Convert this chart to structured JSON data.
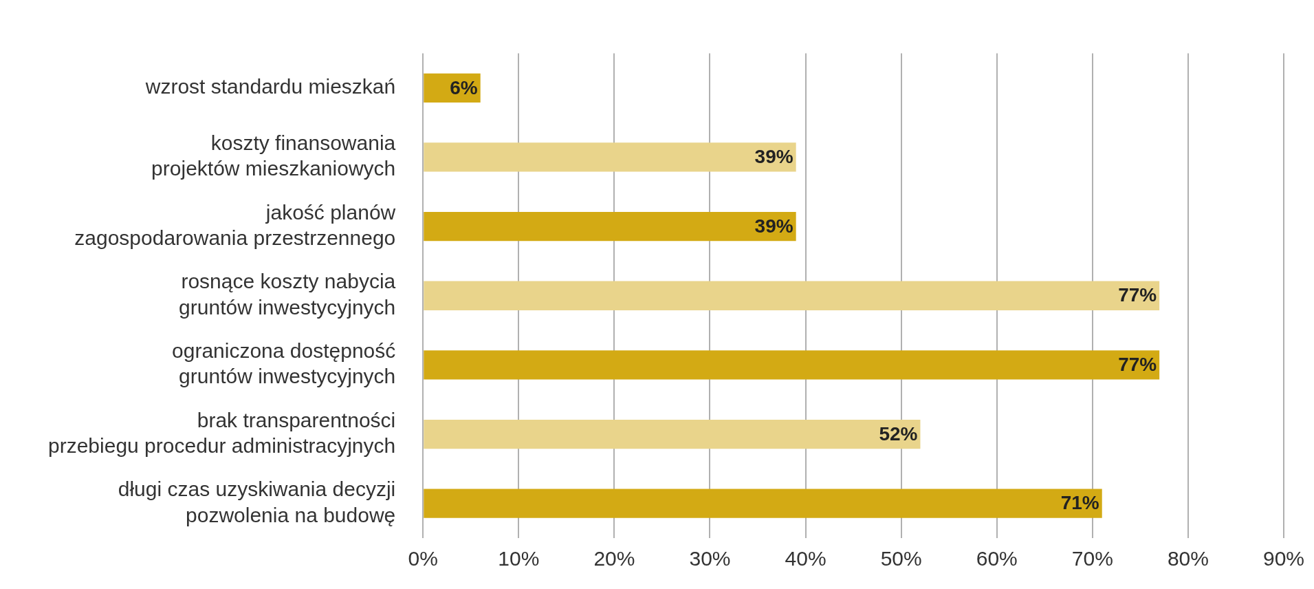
{
  "chart_data": {
    "type": "bar",
    "orientation": "horizontal",
    "categories": [
      "wzrost standardu mieszkań",
      "koszty finansowania\nprojektów mieszkaniowych",
      "jakość planów\nzagospodarowania przestrzennego",
      "rosnące koszty nabycia\ngruntów inwestycyjnych",
      "ograniczona dostępność\ngruntów inwestycyjnych",
      "brak transparentności\nprzebiegu procedur administracyjnych",
      "długi czas uzyskiwania decyzji\npozwolenia na budowę"
    ],
    "values": [
      6,
      39,
      39,
      77,
      77,
      52,
      71
    ],
    "colors": [
      "#d3aa14",
      "#e9d48b",
      "#d3aa14",
      "#e9d48b",
      "#d3aa14",
      "#e9d48b",
      "#d3aa14"
    ],
    "value_labels": [
      "6%",
      "39%",
      "39%",
      "77%",
      "77%",
      "52%",
      "71%"
    ],
    "xlim": [
      0,
      90
    ],
    "xticks": [
      {
        "value": 0,
        "label": "0%"
      },
      {
        "value": 10,
        "label": "10%"
      },
      {
        "value": 20,
        "label": "20%"
      },
      {
        "value": 30,
        "label": "30%"
      },
      {
        "value": 40,
        "label": "40%"
      },
      {
        "value": 50,
        "label": "50%"
      },
      {
        "value": 60,
        "label": "60%"
      },
      {
        "value": 70,
        "label": "70%"
      },
      {
        "value": 80,
        "label": "80%"
      },
      {
        "value": 90,
        "label": "90%"
      }
    ],
    "grid": "x",
    "legend": false
  }
}
